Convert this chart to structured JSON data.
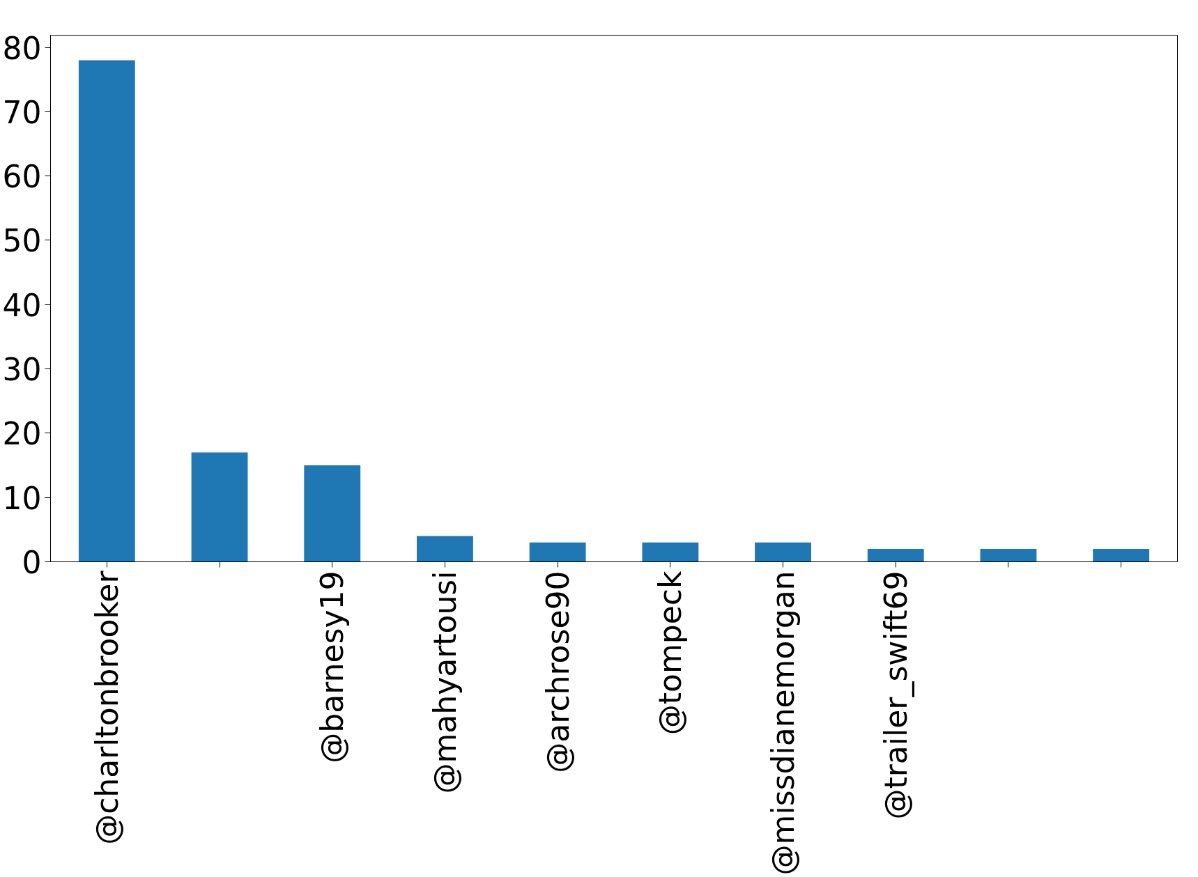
{
  "chart_data": {
    "type": "bar",
    "categories": [
      "@charltonbrooker",
      null,
      "@barnesy19",
      "@mahyartousi",
      "@archrose90",
      "@tompeck",
      "@missdianemorgan",
      "@trailer_swift69",
      null,
      null
    ],
    "values": [
      78,
      17,
      15,
      4,
      3,
      3,
      3,
      2,
      2,
      2
    ],
    "color": "#1f77b4",
    "ylim": [
      0,
      81.9
    ],
    "yticks": [
      0,
      10,
      20,
      30,
      40,
      50,
      60,
      70,
      80
    ],
    "grid": false
  }
}
